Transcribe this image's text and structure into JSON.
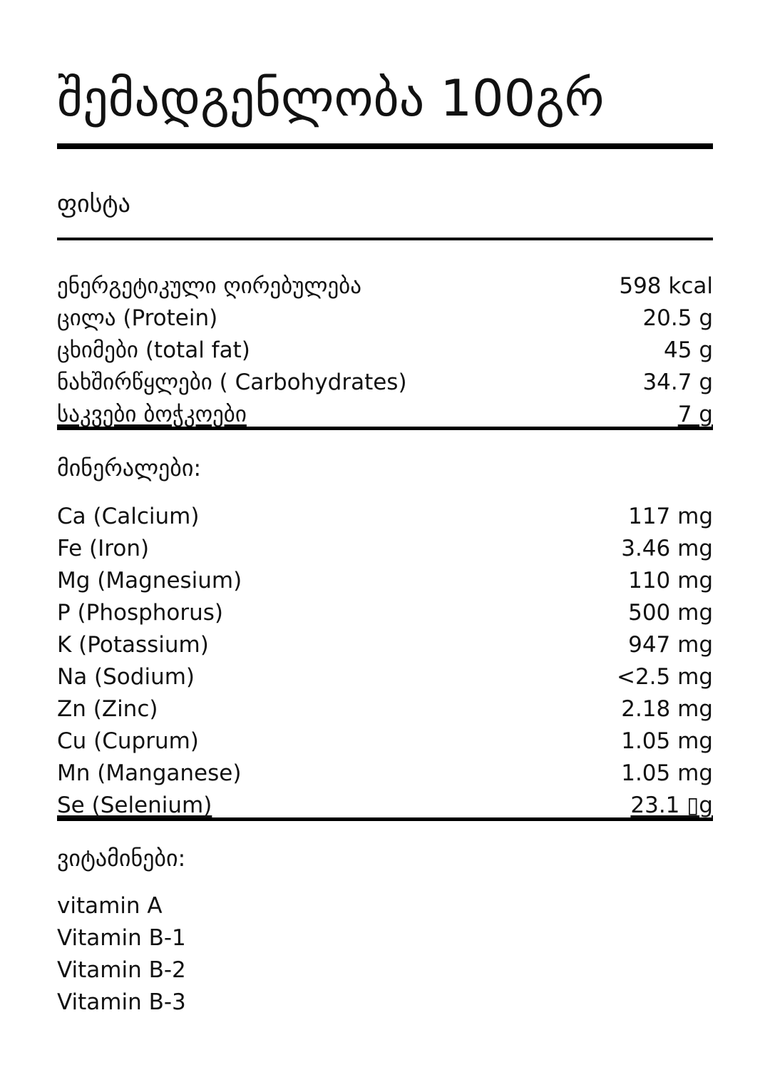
{
  "title": "შემადგენლობა 100გრ",
  "product": "ფისტა",
  "nutrition": [
    {
      "label": "ენერგეტიკული ღირებულება",
      "value": "598 kcal"
    },
    {
      "label": "ცილა (Protein)",
      "value": "20.5 g"
    },
    {
      "label": "ცხიმები (total fat)",
      "value": "45 g"
    },
    {
      "label": "ნახშირწყლები ( Carbohydrates)",
      "value": "34.7 g"
    },
    {
      "label": "საკვები ბოჭკოები",
      "value": "7 g"
    }
  ],
  "minerals_heading": "მინერალები:",
  "minerals": [
    {
      "label": "Ca (Calcium)",
      "value": "117 mg"
    },
    {
      "label": "Fe (Iron)",
      "value": "3.46 mg"
    },
    {
      "label": "Mg (Magnesium)",
      "value": "110 mg"
    },
    {
      "label": "P (Phosphorus)",
      "value": "500 mg"
    },
    {
      "label": "K (Potassium)",
      "value": "947 mg"
    },
    {
      "label": "Na (Sodium)",
      "value": "<2.5 mg"
    },
    {
      "label": "Zn (Zinc)",
      "value": "2.18 mg"
    },
    {
      "label": "Cu (Cuprum)",
      "value": "1.05 mg"
    },
    {
      "label": "Mn (Manganese)",
      "value": "1.05 mg"
    },
    {
      "label": "Se (Selenium)",
      "value": "23.1 ▯g"
    }
  ],
  "vitamins_heading": "ვიტამინები:",
  "vitamins": [
    "vitamin A",
    "Vitamin B-1",
    "Vitamin B-2",
    "Vitamin B-3"
  ]
}
